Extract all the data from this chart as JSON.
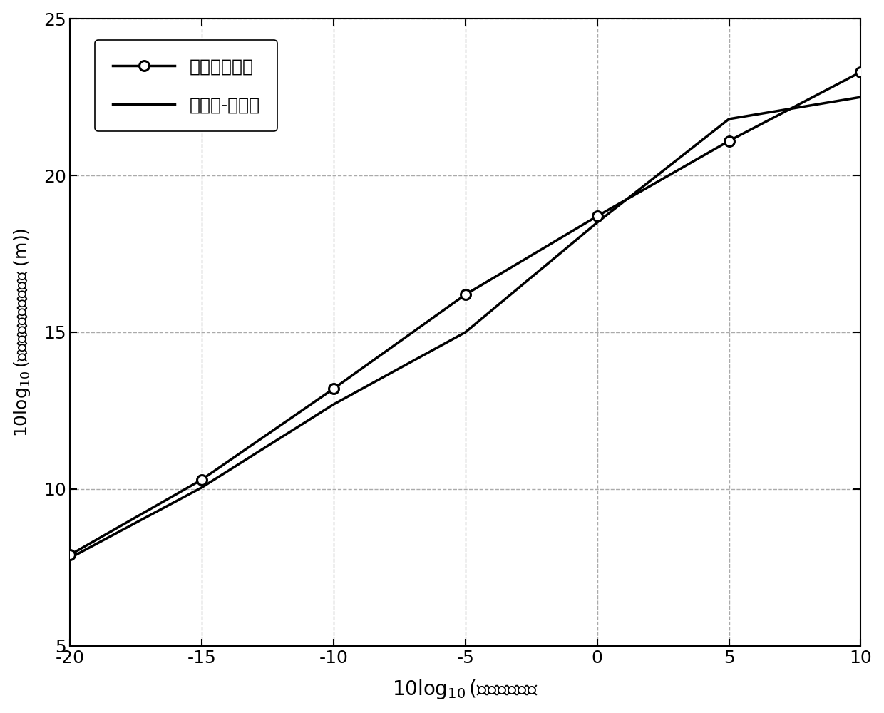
{
  "x": [
    -20,
    -15,
    -10,
    -5,
    0,
    5,
    10
  ],
  "y_method": [
    7.9,
    10.3,
    13.2,
    16.2,
    18.7,
    21.1,
    23.3
  ],
  "y_crb": [
    7.8,
    10.05,
    12.7,
    15.0,
    18.5,
    21.8,
    22.5
  ],
  "line_color": "#000000",
  "xlim": [
    -20,
    10
  ],
  "ylim": [
    5,
    25
  ],
  "xticks": [
    -20,
    -15,
    -10,
    -5,
    0,
    5,
    10
  ],
  "yticks": [
    5,
    10,
    15,
    20,
    25
  ],
  "legend_label1": "本发明的方法",
  "legend_label2": "克拉美-罗下界",
  "grid_linestyle": "--",
  "grid_color": "#aaaaaa",
  "background_color": "#ffffff",
  "line_width": 2.5,
  "marker_size": 10,
  "xlabel": "10log$_{10}$(噪声的功率）",
  "ylabel": "10log$_{10}$(位置估计的均方根误差 (m))"
}
